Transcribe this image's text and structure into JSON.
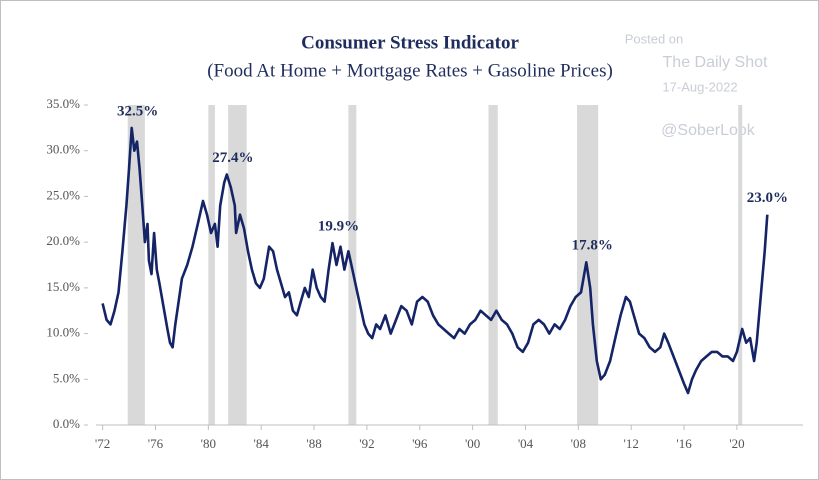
{
  "chart_data": {
    "type": "line",
    "title": "Consumer Stress Indicator",
    "subtitle": "(Food At Home + Mortgage Rates + Gasoline Prices)",
    "watermark": [
      "Posted on",
      "The Daily Shot",
      "17-Aug-2022",
      "@SoberLook"
    ],
    "xlim": [
      1971.5,
      2025
    ],
    "ylim": [
      0,
      35
    ],
    "xticks": [
      {
        "value": 1972,
        "label": "'72"
      },
      {
        "value": 1976,
        "label": "'76"
      },
      {
        "value": 1980,
        "label": "'80"
      },
      {
        "value": 1984,
        "label": "'84"
      },
      {
        "value": 1988,
        "label": "'88"
      },
      {
        "value": 1992,
        "label": "'92"
      },
      {
        "value": 1996,
        "label": "'96"
      },
      {
        "value": 2000,
        "label": "'00"
      },
      {
        "value": 2004,
        "label": "'04"
      },
      {
        "value": 2008,
        "label": "'08"
      },
      {
        "value": 2012,
        "label": "'12"
      },
      {
        "value": 2016,
        "label": "'16"
      },
      {
        "value": 2020,
        "label": "'20"
      }
    ],
    "yticks": [
      {
        "value": 0,
        "label": "0.0%"
      },
      {
        "value": 5,
        "label": "5.0%"
      },
      {
        "value": 10,
        "label": "10.0%"
      },
      {
        "value": 15,
        "label": "15.0%"
      },
      {
        "value": 20,
        "label": "20.0%"
      },
      {
        "value": 25,
        "label": "25.0%"
      },
      {
        "value": 30,
        "label": "30.0%"
      },
      {
        "value": 35,
        "label": "35.0%"
      }
    ],
    "recessions": [
      {
        "start": 1973.9,
        "end": 1975.2
      },
      {
        "start": 1980.0,
        "end": 1980.5
      },
      {
        "start": 1981.5,
        "end": 1982.9
      },
      {
        "start": 1990.6,
        "end": 1991.2
      },
      {
        "start": 2001.2,
        "end": 2001.9
      },
      {
        "start": 2007.9,
        "end": 2009.5
      },
      {
        "start": 2020.1,
        "end": 2020.4
      }
    ],
    "recession_color": "#d9d9d9",
    "series": [
      {
        "color": "#142466",
        "x": [
          1972.0,
          1972.3,
          1972.6,
          1972.9,
          1973.2,
          1973.5,
          1973.8,
          1974.0,
          1974.2,
          1974.4,
          1974.6,
          1974.8,
          1975.0,
          1975.2,
          1975.4,
          1975.5,
          1975.7,
          1975.9,
          1976.1,
          1976.3,
          1976.6,
          1976.9,
          1977.1,
          1977.3,
          1977.5,
          1977.8,
          1978.0,
          1978.4,
          1978.8,
          1979.2,
          1979.6,
          1979.9,
          1980.2,
          1980.5,
          1980.7,
          1980.9,
          1981.2,
          1981.4,
          1981.7,
          1982.0,
          1982.1,
          1982.4,
          1982.7,
          1983.0,
          1983.3,
          1983.6,
          1983.9,
          1984.2,
          1984.6,
          1984.9,
          1985.2,
          1985.5,
          1985.8,
          1986.1,
          1986.4,
          1986.7,
          1987.0,
          1987.3,
          1987.6,
          1987.9,
          1988.2,
          1988.5,
          1988.8,
          1989.1,
          1989.4,
          1989.7,
          1990.0,
          1990.3,
          1990.6,
          1990.9,
          1991.2,
          1991.5,
          1991.8,
          1992.1,
          1992.4,
          1992.7,
          1993.0,
          1993.4,
          1993.8,
          1994.2,
          1994.6,
          1995.0,
          1995.4,
          1995.8,
          1996.2,
          1996.6,
          1997.0,
          1997.4,
          1997.8,
          1998.2,
          1998.6,
          1999.0,
          1999.4,
          1999.8,
          2000.2,
          2000.6,
          2001.0,
          2001.4,
          2001.8,
          2002.2,
          2002.6,
          2003.0,
          2003.4,
          2003.8,
          2004.2,
          2004.6,
          2005.0,
          2005.4,
          2005.8,
          2006.2,
          2006.6,
          2007.0,
          2007.4,
          2007.8,
          2008.2,
          2008.6,
          2008.9,
          2009.1,
          2009.4,
          2009.7,
          2010.0,
          2010.4,
          2010.8,
          2011.2,
          2011.6,
          2011.9,
          2012.2,
          2012.6,
          2013.0,
          2013.4,
          2013.8,
          2014.2,
          2014.5,
          2014.8,
          2015.2,
          2015.6,
          2016.0,
          2016.3,
          2016.6,
          2016.9,
          2017.3,
          2017.7,
          2018.1,
          2018.5,
          2018.9,
          2019.3,
          2019.7,
          2020.0,
          2020.4,
          2020.7,
          2021.0,
          2021.3,
          2021.5,
          2021.8,
          2022.1,
          2022.3
        ],
        "values": [
          13.3,
          11.5,
          11,
          12.5,
          14.5,
          19,
          24,
          28,
          32.5,
          30,
          31,
          28,
          24,
          20,
          22,
          18,
          16.5,
          21,
          17,
          15.5,
          13,
          10.5,
          9,
          8.5,
          11,
          14,
          16,
          17.5,
          19.5,
          22,
          24.5,
          23,
          21,
          22,
          19.5,
          24,
          26.5,
          27.4,
          26,
          24,
          21,
          23,
          21.5,
          19,
          17,
          15.5,
          15,
          16,
          19.5,
          19,
          17,
          15.5,
          14,
          14.5,
          12.5,
          12,
          13.5,
          15,
          14,
          17,
          15,
          14,
          13.5,
          17,
          19.9,
          17.5,
          19.5,
          17,
          19,
          17,
          15,
          13,
          11,
          10,
          9.5,
          11,
          10.5,
          12,
          10,
          11.5,
          13,
          12.5,
          11,
          13.5,
          14,
          13.5,
          12,
          11,
          10.5,
          10,
          9.5,
          10.5,
          10,
          11,
          11.5,
          12.5,
          12,
          11.5,
          12.5,
          11.5,
          11,
          10,
          8.5,
          8,
          9,
          11,
          11.5,
          11,
          10,
          11,
          10.5,
          11.5,
          13,
          14,
          14.5,
          17.8,
          15,
          11,
          7,
          5,
          5.5,
          7,
          9.5,
          12,
          14,
          13.5,
          12,
          10,
          9.5,
          8.5,
          8,
          8.5,
          10,
          9,
          7.5,
          6,
          4.5,
          3.5,
          5,
          6,
          7,
          7.5,
          8,
          8,
          7.5,
          7.5,
          7,
          8,
          10.5,
          9,
          9.5,
          7,
          9,
          14,
          19,
          23
        ]
      }
    ],
    "annotations": [
      {
        "text": "32.5%",
        "x": 1974.2,
        "y": 32.5
      },
      {
        "text": "27.4%",
        "x": 1981.4,
        "y": 27.4
      },
      {
        "text": "19.9%",
        "x": 1989.4,
        "y": 19.9
      },
      {
        "text": "17.8%",
        "x": 2008.6,
        "y": 17.8
      },
      {
        "text": "23.0%",
        "x": 2022.3,
        "y": 23
      }
    ]
  }
}
